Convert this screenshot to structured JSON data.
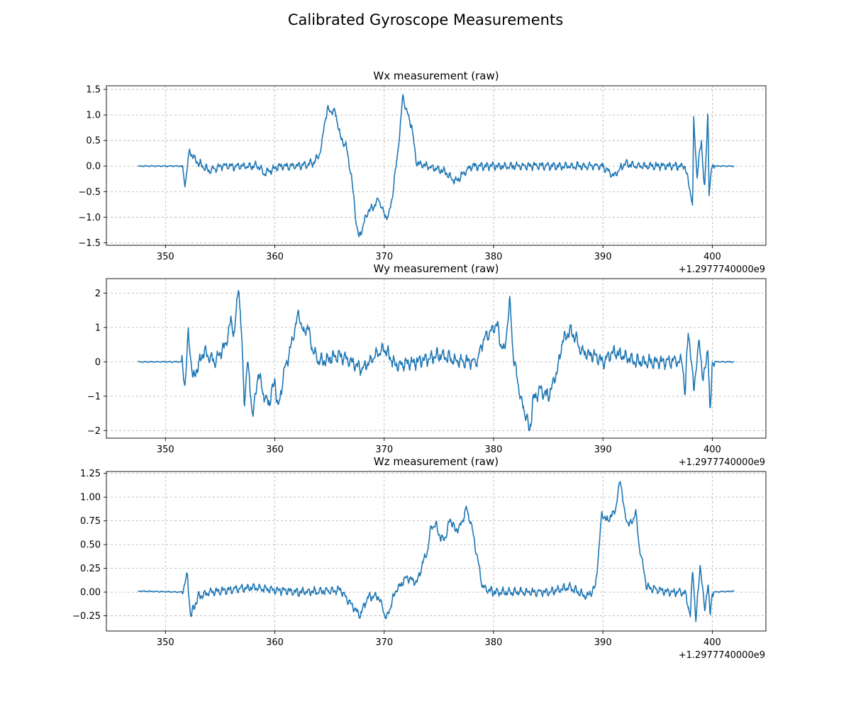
{
  "title": "Calibrated Gyroscope Measurements",
  "chart_data": [
    {
      "type": "line",
      "title": "Wx measurement (raw)",
      "x_offset_label": "+1.2977740000e9",
      "xlim": [
        344.6,
        404.9
      ],
      "ylim": [
        -1.55,
        1.57
      ],
      "xticks": [
        350,
        360,
        370,
        380,
        390,
        400
      ],
      "yticks": [
        -1.5,
        -1.0,
        -0.5,
        0.0,
        0.5,
        1.0,
        1.5
      ],
      "ytick_labels": [
        "−1.5",
        "−1.0",
        "−0.5",
        "0.0",
        "0.5",
        "1.0",
        "1.5"
      ],
      "grid": true,
      "color": "#1f77b4",
      "keypoints": [
        [
          347.5,
          0.0
        ],
        [
          351.5,
          0.0
        ],
        [
          351.8,
          -0.35
        ],
        [
          352.2,
          0.3
        ],
        [
          352.8,
          0.1
        ],
        [
          354.0,
          -0.1
        ],
        [
          355.0,
          0.0
        ],
        [
          357.0,
          0.0
        ],
        [
          358.5,
          0.0
        ],
        [
          359.0,
          -0.15
        ],
        [
          360.5,
          0.0
        ],
        [
          362.0,
          0.0
        ],
        [
          363.5,
          0.05
        ],
        [
          364.0,
          0.2
        ],
        [
          364.3,
          0.4
        ],
        [
          364.5,
          0.8
        ],
        [
          364.8,
          1.1
        ],
        [
          365.5,
          1.05
        ],
        [
          365.8,
          0.8
        ],
        [
          366.0,
          0.55
        ],
        [
          366.5,
          0.4
        ],
        [
          367.0,
          -0.2
        ],
        [
          367.3,
          -0.8
        ],
        [
          367.5,
          -1.2
        ],
        [
          367.7,
          -1.4
        ],
        [
          368.0,
          -1.2
        ],
        [
          368.5,
          -0.9
        ],
        [
          369.0,
          -0.8
        ],
        [
          369.5,
          -0.65
        ],
        [
          370.0,
          -0.95
        ],
        [
          370.4,
          -1.0
        ],
        [
          370.8,
          -0.5
        ],
        [
          371.2,
          0.2
        ],
        [
          371.5,
          0.8
        ],
        [
          371.7,
          1.4
        ],
        [
          372.0,
          1.1
        ],
        [
          372.5,
          0.8
        ],
        [
          372.8,
          0.3
        ],
        [
          373.0,
          0.05
        ],
        [
          374.0,
          0.0
        ],
        [
          375.5,
          -0.1
        ],
        [
          376.5,
          -0.3
        ],
        [
          378.0,
          0.0
        ],
        [
          380.0,
          0.0
        ],
        [
          385.0,
          0.0
        ],
        [
          388.0,
          0.0
        ],
        [
          390.0,
          0.0
        ],
        [
          391.0,
          -0.2
        ],
        [
          392.0,
          0.05
        ],
        [
          393.0,
          0.0
        ],
        [
          396.0,
          0.0
        ],
        [
          397.5,
          0.0
        ],
        [
          397.8,
          -0.3
        ],
        [
          398.0,
          -0.5
        ],
        [
          398.2,
          -0.78
        ],
        [
          398.3,
          0.9
        ],
        [
          398.6,
          -0.2
        ],
        [
          399.0,
          0.5
        ],
        [
          399.3,
          -0.5
        ],
        [
          399.6,
          1.08
        ],
        [
          399.7,
          -0.5
        ],
        [
          400.0,
          0.0
        ],
        [
          402.0,
          0.0
        ]
      ],
      "noise": [
        0.0,
        0.09,
        0.06
      ]
    },
    {
      "type": "line",
      "title": "Wy measurement (raw)",
      "x_offset_label": "+1.2977740000e9",
      "xlim": [
        344.6,
        404.9
      ],
      "ylim": [
        -2.22,
        2.42
      ],
      "xticks": [
        350,
        360,
        370,
        380,
        390,
        400
      ],
      "yticks": [
        -2,
        -1,
        0,
        1,
        2
      ],
      "ytick_labels": [
        "−2",
        "−1",
        "0",
        "1",
        "2"
      ],
      "grid": true,
      "color": "#1f77b4",
      "keypoints": [
        [
          347.5,
          0.0
        ],
        [
          351.5,
          0.0
        ],
        [
          351.8,
          -0.65
        ],
        [
          352.1,
          0.85
        ],
        [
          352.5,
          -0.5
        ],
        [
          353.5,
          0.3
        ],
        [
          354.5,
          0.0
        ],
        [
          355.5,
          0.5
        ],
        [
          356.0,
          1.2
        ],
        [
          356.3,
          0.8
        ],
        [
          356.7,
          2.25
        ],
        [
          357.0,
          0.5
        ],
        [
          357.2,
          -1.2
        ],
        [
          357.5,
          0.0
        ],
        [
          358.0,
          -1.6
        ],
        [
          358.5,
          -0.3
        ],
        [
          359.0,
          -1.0
        ],
        [
          359.5,
          -1.2
        ],
        [
          360.0,
          -0.5
        ],
        [
          360.3,
          -1.4
        ],
        [
          360.8,
          -0.4
        ],
        [
          361.5,
          0.5
        ],
        [
          362.2,
          1.45
        ],
        [
          362.6,
          0.8
        ],
        [
          363.0,
          1.05
        ],
        [
          363.5,
          0.3
        ],
        [
          364.0,
          0.0
        ],
        [
          366.0,
          0.2
        ],
        [
          368.0,
          -0.2
        ],
        [
          370.0,
          0.4
        ],
        [
          371.0,
          -0.1
        ],
        [
          373.0,
          0.0
        ],
        [
          375.0,
          0.2
        ],
        [
          377.0,
          0.0
        ],
        [
          378.5,
          0.0
        ],
        [
          379.0,
          0.6
        ],
        [
          379.5,
          0.8
        ],
        [
          380.3,
          1.1
        ],
        [
          380.6,
          0.6
        ],
        [
          381.0,
          0.3
        ],
        [
          381.5,
          1.75
        ],
        [
          381.8,
          0.2
        ],
        [
          382.5,
          -1.1
        ],
        [
          383.0,
          -1.6
        ],
        [
          383.3,
          -2.05
        ],
        [
          383.6,
          -1.1
        ],
        [
          384.3,
          -0.8
        ],
        [
          385.0,
          -1.0
        ],
        [
          385.8,
          -0.3
        ],
        [
          386.3,
          0.6
        ],
        [
          387.0,
          0.9
        ],
        [
          387.5,
          0.7
        ],
        [
          388.0,
          0.3
        ],
        [
          389.0,
          0.2
        ],
        [
          390.0,
          0.0
        ],
        [
          391.0,
          0.3
        ],
        [
          393.0,
          0.0
        ],
        [
          396.0,
          0.0
        ],
        [
          397.3,
          0.0
        ],
        [
          397.5,
          -1.05
        ],
        [
          397.8,
          1.0
        ],
        [
          398.3,
          -0.8
        ],
        [
          398.8,
          0.6
        ],
        [
          399.2,
          -0.6
        ],
        [
          399.6,
          0.5
        ],
        [
          399.8,
          -1.65
        ],
        [
          400.0,
          0.0
        ],
        [
          402.0,
          0.0
        ]
      ],
      "noise": [
        0.0,
        0.22,
        0.12
      ]
    },
    {
      "type": "line",
      "title": "Wz measurement (raw)",
      "x_offset_label": "+1.2977740000e9",
      "xlim": [
        344.6,
        404.9
      ],
      "ylim": [
        -0.41,
        1.27
      ],
      "xticks": [
        350,
        360,
        370,
        380,
        390,
        400
      ],
      "yticks": [
        -0.25,
        0.0,
        0.25,
        0.5,
        0.75,
        1.0,
        1.25
      ],
      "ytick_labels": [
        "−0.25",
        "0.00",
        "0.25",
        "0.50",
        "0.75",
        "1.00",
        "1.25"
      ],
      "grid": true,
      "color": "#1f77b4",
      "keypoints": [
        [
          347.5,
          0.01
        ],
        [
          351.5,
          0.0
        ],
        [
          352.0,
          0.18
        ],
        [
          352.3,
          -0.25
        ],
        [
          353.0,
          -0.05
        ],
        [
          354.0,
          0.0
        ],
        [
          358.0,
          0.05
        ],
        [
          362.0,
          0.0
        ],
        [
          366.0,
          0.02
        ],
        [
          367.8,
          -0.25
        ],
        [
          368.5,
          -0.05
        ],
        [
          369.5,
          -0.05
        ],
        [
          370.2,
          -0.28
        ],
        [
          371.0,
          0.0
        ],
        [
          372.0,
          0.15
        ],
        [
          373.0,
          0.1
        ],
        [
          373.5,
          0.3
        ],
        [
          374.0,
          0.45
        ],
        [
          374.3,
          0.7
        ],
        [
          374.8,
          0.7
        ],
        [
          375.2,
          0.55
        ],
        [
          375.7,
          0.6
        ],
        [
          376.0,
          0.78
        ],
        [
          376.5,
          0.65
        ],
        [
          377.0,
          0.7
        ],
        [
          377.5,
          0.88
        ],
        [
          378.0,
          0.7
        ],
        [
          378.3,
          0.5
        ],
        [
          378.7,
          0.25
        ],
        [
          379.0,
          0.05
        ],
        [
          380.0,
          0.0
        ],
        [
          385.0,
          0.0
        ],
        [
          387.0,
          0.05
        ],
        [
          388.5,
          -0.05
        ],
        [
          389.3,
          0.05
        ],
        [
          389.6,
          0.4
        ],
        [
          389.9,
          0.85
        ],
        [
          390.3,
          0.75
        ],
        [
          390.8,
          0.8
        ],
        [
          391.2,
          0.9
        ],
        [
          391.6,
          1.2
        ],
        [
          392.0,
          0.8
        ],
        [
          392.5,
          0.7
        ],
        [
          393.0,
          0.85
        ],
        [
          393.3,
          0.5
        ],
        [
          393.7,
          0.25
        ],
        [
          394.0,
          0.05
        ],
        [
          396.0,
          0.0
        ],
        [
          397.5,
          0.0
        ],
        [
          398.0,
          -0.25
        ],
        [
          398.2,
          0.25
        ],
        [
          398.5,
          -0.3
        ],
        [
          398.9,
          0.3
        ],
        [
          399.3,
          -0.2
        ],
        [
          399.6,
          0.1
        ],
        [
          399.8,
          -0.25
        ],
        [
          400.0,
          0.0
        ],
        [
          402.0,
          0.01
        ]
      ],
      "noise": [
        0.0,
        0.05,
        0.035
      ]
    }
  ]
}
